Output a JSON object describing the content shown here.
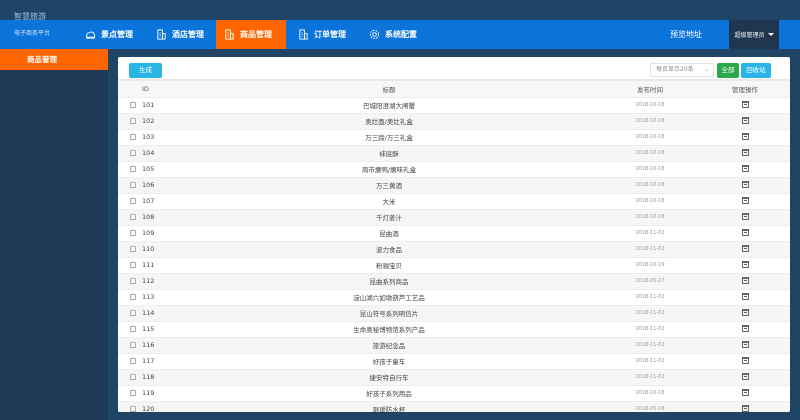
{
  "brand": {
    "name": "智慧旅游",
    "subtitle": "电子商务平台"
  },
  "nav": {
    "items": [
      {
        "label": "景点管理",
        "icon": "cloud-landscape-icon"
      },
      {
        "label": "酒店管理",
        "icon": "building-icon"
      },
      {
        "label": "商品管理",
        "icon": "building-icon",
        "active": true
      },
      {
        "label": "订单管理",
        "icon": "building-icon"
      },
      {
        "label": "系统配置",
        "icon": "gear-icon"
      }
    ],
    "preview": "预览地址",
    "admin": "超级管理员"
  },
  "sidebar": {
    "items": [
      {
        "label": "商品管理",
        "active": true
      }
    ]
  },
  "toolbar": {
    "generate": "生成",
    "page_size": "每页显示20条",
    "all": "全部",
    "recycle": "回收站"
  },
  "colors": {
    "nav": "#0a74da",
    "active": "#ff6600",
    "background": "#1f4466"
  },
  "table": {
    "headers": [
      "ID",
      "标题",
      "发布时间",
      "管理操作"
    ],
    "rows": [
      {
        "id": "101",
        "title": "巴城阳澄湖大闸蟹",
        "date": "2018-10-18"
      },
      {
        "id": "102",
        "title": "奥灶面/奥灶礼盒",
        "date": "2018-10-18"
      },
      {
        "id": "103",
        "title": "万三蹄/万三礼盒",
        "date": "2018-10-18"
      },
      {
        "id": "104",
        "title": "袜底酥",
        "date": "2018-10-18"
      },
      {
        "id": "105",
        "title": "周市爊鸭/爊味礼盒",
        "date": "2018-10-18"
      },
      {
        "id": "106",
        "title": "万三黄酒",
        "date": "2018-10-18"
      },
      {
        "id": "107",
        "title": "大米",
        "date": "2018-10-18"
      },
      {
        "id": "108",
        "title": "千灯姜汁",
        "date": "2018-10-18"
      },
      {
        "id": "109",
        "title": "昆曲酒",
        "date": "2018-11-02"
      },
      {
        "id": "110",
        "title": "波力食品",
        "date": "2018-11-02"
      },
      {
        "id": "111",
        "title": "粉骊宝贝",
        "date": "2018-10-19"
      },
      {
        "id": "112",
        "title": "昆曲系列商品",
        "date": "2018-05-27"
      },
      {
        "id": "113",
        "title": "淀山湖六如墩葫芦工艺品",
        "date": "2018-11-02"
      },
      {
        "id": "114",
        "title": "昆山符号系列明信片",
        "date": "2018-11-02"
      },
      {
        "id": "115",
        "title": "生命奥秘博物馆系列产品",
        "date": "2018-11-02"
      },
      {
        "id": "116",
        "title": "旅游纪念品",
        "date": "2018-11-02"
      },
      {
        "id": "117",
        "title": "好孩子童车",
        "date": "2018-11-02"
      },
      {
        "id": "118",
        "title": "捷安特自行车",
        "date": "2018-11-02"
      },
      {
        "id": "119",
        "title": "好孩子系列用品",
        "date": "2018-10-18"
      },
      {
        "id": "120",
        "title": "琨瑷防水杯",
        "date": "2018-05-18"
      }
    ]
  }
}
